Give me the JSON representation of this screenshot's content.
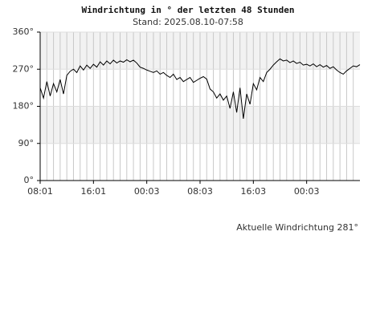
{
  "chart_data": {
    "type": "line",
    "title": "Windrichtung in ° der letzten 48 Stunden",
    "subtitle": "Stand: 2025.08.10-07:58",
    "annotation": "Aktuelle Windrichtung 281°",
    "x": [
      0,
      0.5,
      1,
      1.5,
      2,
      2.5,
      3,
      3.5,
      4,
      4.5,
      5,
      5.5,
      6,
      6.5,
      7,
      7.5,
      8,
      8.5,
      9,
      9.5,
      10,
      10.5,
      11,
      11.5,
      12,
      12.5,
      13,
      13.5,
      14,
      14.5,
      15,
      15.5,
      16,
      16.5,
      17,
      17.5,
      18,
      18.5,
      19,
      19.5,
      20,
      20.5,
      21,
      21.5,
      22,
      22.5,
      23,
      23.5,
      24,
      24.5,
      25,
      25.5,
      26,
      26.5,
      27,
      27.5,
      28,
      28.5,
      29,
      29.5,
      30,
      30.5,
      31,
      31.5,
      32,
      32.5,
      33,
      33.5,
      34,
      34.5,
      35,
      35.5,
      36,
      36.5,
      37,
      37.5,
      38,
      38.5,
      39,
      39.5,
      40,
      40.5,
      41,
      41.5,
      42,
      42.5,
      43,
      43.5,
      44,
      44.5,
      45,
      45.5,
      46,
      46.5,
      47,
      47.5,
      48
    ],
    "series": [
      {
        "color": "#000000",
        "values": [
          225,
          200,
          240,
          205,
          235,
          215,
          245,
          210,
          255,
          265,
          270,
          262,
          278,
          268,
          280,
          272,
          282,
          275,
          288,
          280,
          290,
          283,
          292,
          285,
          290,
          287,
          293,
          288,
          292,
          285,
          275,
          272,
          268,
          265,
          262,
          266,
          258,
          262,
          255,
          250,
          258,
          245,
          250,
          240,
          245,
          250,
          238,
          243,
          248,
          252,
          246,
          222,
          215,
          200,
          210,
          195,
          205,
          175,
          215,
          165,
          225,
          150,
          210,
          185,
          235,
          220,
          250,
          240,
          262,
          270,
          280,
          288,
          295,
          290,
          292,
          286,
          290,
          284,
          287,
          280,
          282,
          278,
          283,
          276,
          281,
          275,
          279,
          272,
          276,
          268,
          262,
          258,
          266,
          272,
          278,
          276,
          281
        ]
      }
    ],
    "xlim": [
      0,
      48
    ],
    "xticks": [
      {
        "value": 0,
        "label": "08:01"
      },
      {
        "value": 8,
        "label": "16:01"
      },
      {
        "value": 16,
        "label": "00:03"
      },
      {
        "value": 24,
        "label": "08:03"
      },
      {
        "value": 32,
        "label": "16:03"
      },
      {
        "value": 40,
        "label": "00:03"
      }
    ],
    "minor_grid_step": 1,
    "ylim": [
      0,
      360
    ],
    "yticks": [
      {
        "value": 0,
        "label": "0°"
      },
      {
        "value": 90,
        "label": "90°"
      },
      {
        "value": 180,
        "label": "180°"
      },
      {
        "value": 270,
        "label": "270°"
      },
      {
        "value": 360,
        "label": "360°"
      }
    ],
    "grid": true
  }
}
